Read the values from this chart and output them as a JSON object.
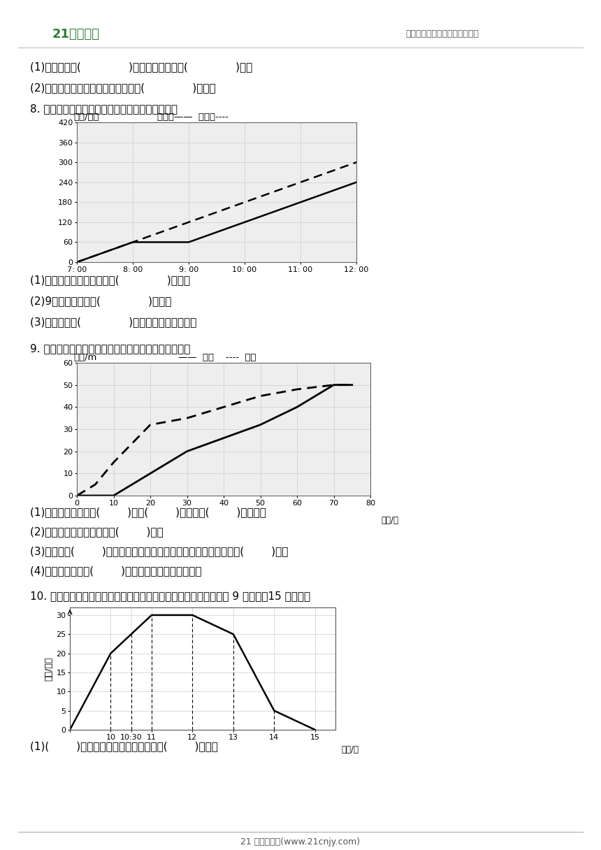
{
  "page_bg": "#ffffff",
  "header_text_right": "中小学教育资源及组卷应用平台",
  "footer_text": "21 世纪教育网(www.21cnjy.com)",
  "text_lines": [
    "(1)汽车行驶了(              )小时后加油，加油(              )升。",
    "(2)加油后，油箱中的油最多可以行驶(              )小时。",
    "8. 下面是甲、乙两车的行程图，认真观察后填空。"
  ],
  "q8_questions": [
    "(1)甲车在路上因故障停留了(              )小时。",
    "(2)9时整，两车相距(              )千米。",
    "(3)出发以后，(              )时整，两车相距最近。"
  ],
  "q9_intro": "9. 下面是爸爸和小明在体育馆游泳情况的折线统计图。",
  "q9_questions": [
    "(1)爸爸和小明都游了(        )米，(        )先出发，(        )先到达。",
    "(2)小明所用的时间比爸爸多(        )秒。",
    "(3)小明游到(        )米的时候速度开始慢下来，在此之前平均每秒游(        )米。",
    "(4)爸爸平均每秒游(        )米。（得数保留两位小数）"
  ],
  "q10_intro": "10. 图中折线表示骑车者骑自行车离家的路程与时间的关系，骑车者 9 时离家，15 时到家。",
  "q10_questions": [
    "(1)(        )时到达离家最远的地方，离家(        )千米。"
  ],
  "chart8": {
    "x_ticks": [
      "7: 00",
      "8: 00",
      "9: 00",
      "10: 00",
      "11: 00",
      "12: 00"
    ],
    "x_values": [
      7,
      8,
      9,
      10,
      11,
      12
    ],
    "y_ticks": [
      0,
      60,
      120,
      180,
      240,
      300,
      360,
      420
    ],
    "car_jia_x": [
      7,
      8,
      9,
      9,
      10,
      11,
      12
    ],
    "car_jia_y": [
      0,
      60,
      60,
      60,
      120,
      180,
      240
    ],
    "car_yi_x": [
      7,
      8,
      9,
      10,
      11,
      12
    ],
    "car_yi_y": [
      0,
      60,
      120,
      180,
      240,
      300
    ]
  },
  "chart9": {
    "x_ticks": [
      0,
      10,
      20,
      30,
      40,
      50,
      60,
      70,
      80
    ],
    "y_ticks": [
      0,
      10,
      20,
      30,
      40,
      50,
      60
    ],
    "baba_x": [
      0,
      10,
      20,
      30,
      40,
      50,
      60,
      70,
      75
    ],
    "baba_y": [
      0,
      0,
      10,
      20,
      26,
      32,
      40,
      50,
      50
    ],
    "xiaoming_x": [
      0,
      5,
      10,
      20,
      30,
      40,
      50,
      60,
      70,
      75
    ],
    "xiaoming_y": [
      0,
      5,
      15,
      32,
      35,
      40,
      45,
      48,
      50,
      50
    ]
  },
  "chart10": {
    "x_tick_positions": [
      9,
      10,
      10.5,
      11,
      12,
      13,
      14,
      15
    ],
    "x_tick_labels": [
      "",
      "10",
      "10:30",
      "11",
      "12",
      "13",
      "14",
      "15"
    ],
    "x_values": [
      9,
      10,
      10.5,
      11,
      12,
      13,
      14,
      15
    ],
    "y_values": [
      0,
      20,
      25,
      30,
      30,
      25,
      5,
      0
    ],
    "y_ticks": [
      0,
      5,
      10,
      15,
      20,
      25,
      30
    ]
  }
}
